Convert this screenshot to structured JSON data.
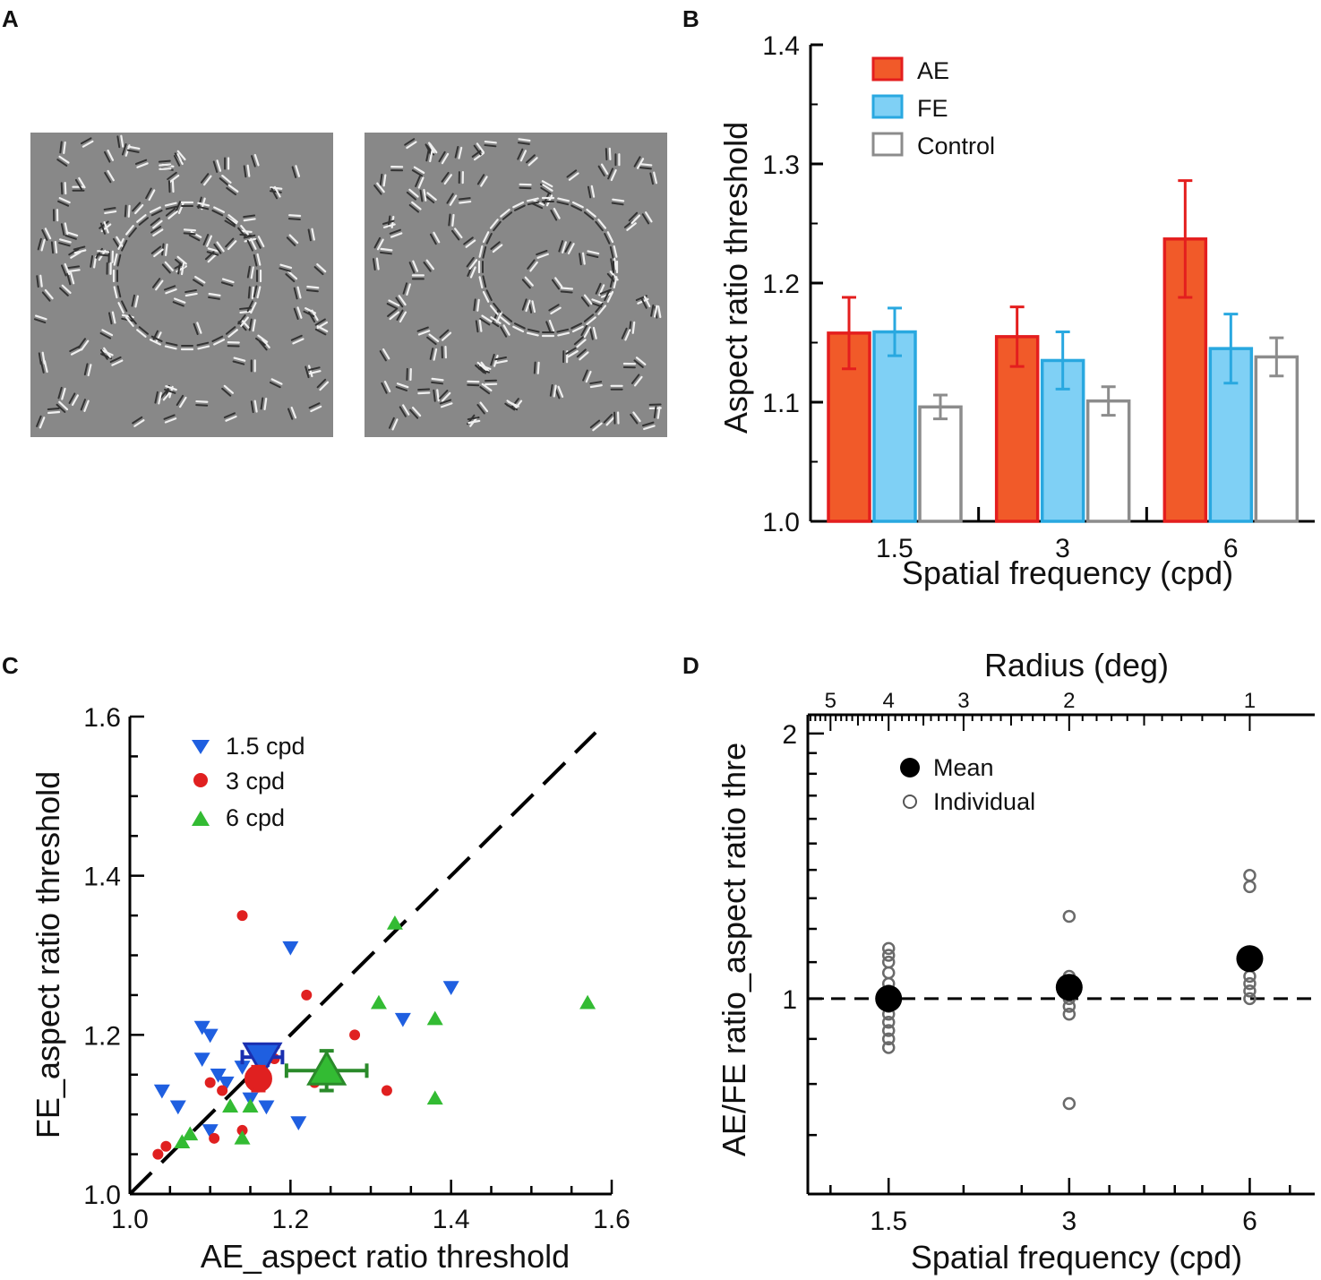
{
  "panel_labels": {
    "a": "A",
    "b": "B",
    "c": "C",
    "d": "D"
  },
  "colors": {
    "ae": "#f15a29",
    "ae_edge": "#e41e1e",
    "fe": "#7fd0f5",
    "fe_edge": "#29a8e0",
    "control_edge": "#8c8c8c",
    "blue": "#1f5fe0",
    "red": "#e02020",
    "green": "#33bb33",
    "dark_blue": "#1a2fb0",
    "dark_green": "#2a8a2a",
    "stimulus_gray": "#888888"
  },
  "chart_data": [
    {
      "panel": "A",
      "type": "image",
      "description_free": true,
      "images": [
        "stimulus-left",
        "stimulus-right"
      ]
    },
    {
      "panel": "B",
      "type": "bar",
      "ylabel": "Aspect ratio threshold",
      "xlabel": "Spatial frequency (cpd)",
      "ylim": [
        1.0,
        1.4
      ],
      "yticks": [
        "1.0",
        "1.1",
        "1.2",
        "1.3",
        "1.4"
      ],
      "categories": [
        "1.5",
        "3",
        "6"
      ],
      "series": [
        {
          "name": "AE",
          "values": [
            1.158,
            1.155,
            1.237
          ],
          "err": [
            0.03,
            0.025,
            0.049
          ]
        },
        {
          "name": "FE",
          "values": [
            1.159,
            1.135,
            1.145
          ],
          "err": [
            0.02,
            0.024,
            0.029
          ]
        },
        {
          "name": "Control",
          "values": [
            1.096,
            1.101,
            1.138
          ],
          "err": [
            0.01,
            0.012,
            0.016
          ]
        }
      ]
    },
    {
      "panel": "C",
      "type": "scatter",
      "xlabel": "AE_aspect ratio threshold",
      "ylabel": "FE_aspect ratio threshold",
      "xlim": [
        1.0,
        1.6
      ],
      "ylim": [
        1.0,
        1.6
      ],
      "xticks": [
        "1.0",
        "1.2",
        "1.4",
        "1.6"
      ],
      "yticks": [
        "1.0",
        "1.2",
        "1.4",
        "1.6"
      ],
      "identity_line": true,
      "series": [
        {
          "name": "1.5 cpd",
          "marker": "triangle-down",
          "points": [
            [
              1.04,
              1.13
            ],
            [
              1.06,
              1.11
            ],
            [
              1.09,
              1.21
            ],
            [
              1.1,
              1.2
            ],
            [
              1.09,
              1.17
            ],
            [
              1.1,
              1.08
            ],
            [
              1.11,
              1.15
            ],
            [
              1.12,
              1.14
            ],
            [
              1.14,
              1.16
            ],
            [
              1.15,
              1.12
            ],
            [
              1.17,
              1.11
            ],
            [
              1.2,
              1.31
            ],
            [
              1.21,
              1.09
            ],
            [
              1.34,
              1.22
            ],
            [
              1.4,
              1.26
            ]
          ],
          "mean": [
            1.165,
            1.172
          ],
          "xerr": 0.025,
          "yerr": 0.01
        },
        {
          "name": "3 cpd",
          "marker": "circle",
          "points": [
            [
              1.035,
              1.05
            ],
            [
              1.045,
              1.06
            ],
            [
              1.1,
              1.14
            ],
            [
              1.105,
              1.07
            ],
            [
              1.115,
              1.13
            ],
            [
              1.14,
              1.08
            ],
            [
              1.14,
              1.35
            ],
            [
              1.18,
              1.17
            ],
            [
              1.22,
              1.25
            ],
            [
              1.23,
              1.14
            ],
            [
              1.28,
              1.2
            ],
            [
              1.32,
              1.13
            ]
          ],
          "mean": [
            1.16,
            1.145
          ],
          "xerr": 0.012,
          "yerr": 0.015
        },
        {
          "name": "6 cpd",
          "marker": "triangle-up",
          "points": [
            [
              1.065,
              1.065
            ],
            [
              1.075,
              1.075
            ],
            [
              1.125,
              1.11
            ],
            [
              1.14,
              1.07
            ],
            [
              1.15,
              1.11
            ],
            [
              1.31,
              1.24
            ],
            [
              1.33,
              1.34
            ],
            [
              1.38,
              1.22
            ],
            [
              1.38,
              1.12
            ],
            [
              1.57,
              1.24
            ]
          ],
          "mean": [
            1.245,
            1.155
          ],
          "xerr": 0.05,
          "yerr": 0.025
        }
      ]
    },
    {
      "panel": "D",
      "type": "scatter",
      "yscale": "log",
      "xscale": "log",
      "xlabel": "Spatial frequency (cpd)",
      "ylabel": "AE/FE ratio_aspect ratio thre",
      "top_xlabel": "Radius (deg)",
      "top_ticks": [
        "5",
        "4",
        "3",
        "2",
        "1"
      ],
      "top_tick_values": [
        5,
        4,
        3,
        2,
        1
      ],
      "ylim": [
        0.6,
        2.1
      ],
      "xlim": [
        1.1,
        7.7
      ],
      "xticks": [
        "1.5",
        "3",
        "6"
      ],
      "yticks": [
        "1",
        "2"
      ],
      "reference_line": 1,
      "legend": [
        "Mean",
        "Individual"
      ],
      "means": [
        [
          1.5,
          1.0
        ],
        [
          3,
          1.03
        ],
        [
          6,
          1.11
        ]
      ],
      "individual": {
        "1.5": [
          0.88,
          0.9,
          0.92,
          0.94,
          0.96,
          0.98,
          1.0,
          1.02,
          1.04,
          1.07,
          1.1,
          1.12,
          1.14
        ],
        "3": [
          0.76,
          0.96,
          0.98,
          1.0,
          1.02,
          1.04,
          1.06,
          1.24
        ],
        "6": [
          1.0,
          1.02,
          1.04,
          1.06,
          1.1,
          1.13,
          1.34,
          1.38
        ]
      }
    }
  ]
}
